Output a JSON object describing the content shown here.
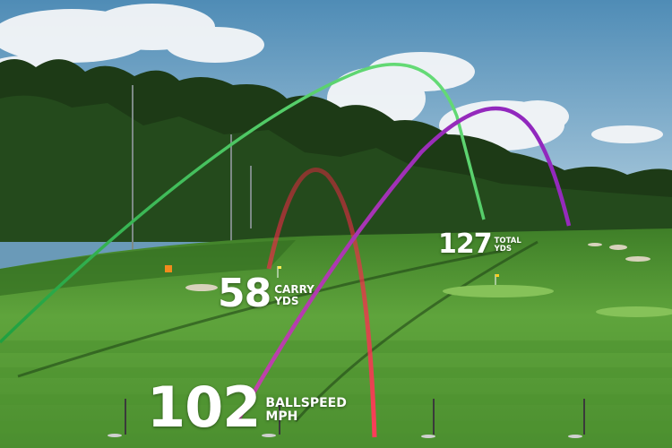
{
  "scene": {
    "colors": {
      "sky_top": "#5d93b8",
      "sky_bottom": "#a9c8dc",
      "fairway": "#5aa03a",
      "rough": "#2f6a20",
      "trace_green": "#3fcf5a",
      "trace_red": "#f0304e",
      "trace_purple": "#a030c8"
    }
  },
  "stats": {
    "ballspeed": {
      "value": "102",
      "label_top": "BALLSPEED",
      "label_bottom": "MPH"
    },
    "carry": {
      "value": "58",
      "label_top": "CARRY",
      "label_bottom": "YDS"
    },
    "total": {
      "value": "127",
      "label_top": "TOTAL",
      "label_bottom": "YDS"
    }
  }
}
